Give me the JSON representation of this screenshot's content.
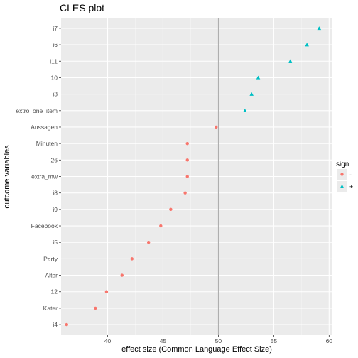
{
  "chart_data": {
    "type": "scatter",
    "title": "CLES plot",
    "xlabel": "effect size (Common Language Effect Size)",
    "ylabel": "outcome variables",
    "xlim": [
      35.8,
      60.3
    ],
    "x_ticks": [
      40,
      45,
      50,
      55,
      60
    ],
    "reference_line_x": 50,
    "categories": [
      "i4",
      "Kater",
      "i12",
      "Alter",
      "Party",
      "i5",
      "Facebook",
      "i9",
      "i8",
      "extra_mw",
      "i26",
      "Minuten",
      "Aussagen",
      "extro_one_item",
      "i3",
      "i10",
      "i11",
      "i6",
      "i7"
    ],
    "grid": true,
    "legend": {
      "title": "sign",
      "placement": "right",
      "entries": [
        {
          "label": "-",
          "color": "#F8766D",
          "shape": "circle"
        },
        {
          "label": "+",
          "color": "#00BFC4",
          "shape": "triangle"
        }
      ]
    },
    "series": [
      {
        "name": "-",
        "color": "#F8766D",
        "shape": "circle",
        "points": [
          {
            "y": "i4",
            "x": 36.3
          },
          {
            "y": "Kater",
            "x": 38.9
          },
          {
            "y": "i12",
            "x": 39.9
          },
          {
            "y": "Alter",
            "x": 41.3
          },
          {
            "y": "Party",
            "x": 42.2
          },
          {
            "y": "i5",
            "x": 43.7
          },
          {
            "y": "Facebook",
            "x": 44.8
          },
          {
            "y": "i9",
            "x": 45.7
          },
          {
            "y": "i8",
            "x": 47.0
          },
          {
            "y": "extra_mw",
            "x": 47.2
          },
          {
            "y": "i26",
            "x": 47.2
          },
          {
            "y": "Minuten",
            "x": 47.2
          },
          {
            "y": "Aussagen",
            "x": 49.8
          }
        ]
      },
      {
        "name": "+",
        "color": "#00BFC4",
        "shape": "triangle",
        "points": [
          {
            "y": "extro_one_item",
            "x": 52.4
          },
          {
            "y": "i3",
            "x": 53.0
          },
          {
            "y": "i10",
            "x": 53.6
          },
          {
            "y": "i11",
            "x": 56.5
          },
          {
            "y": "i6",
            "x": 58.0
          },
          {
            "y": "i7",
            "x": 59.1
          }
        ]
      }
    ]
  }
}
